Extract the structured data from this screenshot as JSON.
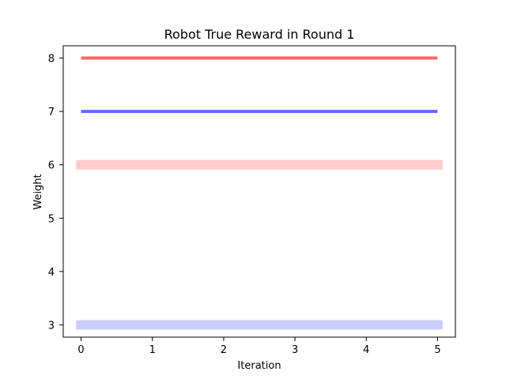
{
  "chart_data": {
    "type": "line",
    "title": "Robot True Reward in Round 1",
    "xlabel": "Iteration",
    "ylabel": "Weight",
    "xlim": [
      -0.25,
      5.25
    ],
    "ylim": [
      2.77,
      8.23
    ],
    "xticks": [
      0,
      1,
      2,
      3,
      4,
      5
    ],
    "yticks": [
      3,
      4,
      5,
      6,
      7,
      8
    ],
    "grid": false,
    "series": [
      {
        "x": [
          0,
          5
        ],
        "values": [
          8,
          8
        ],
        "color": "#ff6666",
        "style": "solid-thin"
      },
      {
        "x": [
          0,
          5
        ],
        "values": [
          7,
          7
        ],
        "color": "#6666ff",
        "style": "solid-thin"
      },
      {
        "x": [
          -0.07,
          5.07
        ],
        "values": [
          6,
          6
        ],
        "color": "#ffcccc",
        "style": "band-thick"
      },
      {
        "x": [
          -0.07,
          5.07
        ],
        "values": [
          3,
          3
        ],
        "color": "#ccccff",
        "style": "band-thick"
      }
    ]
  }
}
